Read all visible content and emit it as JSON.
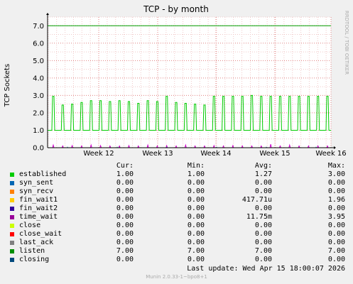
{
  "chart_data": {
    "type": "line",
    "title": "TCP - by month",
    "ylabel": "TCP Sockets",
    "side_label": "RRDTOOL / TOBI OETIKER",
    "ylim": [
      0,
      7.5
    ],
    "y_ticks": [
      "0.0",
      "1.0",
      "2.0",
      "3.0",
      "4.0",
      "5.0",
      "6.0",
      "7.0"
    ],
    "x_ticks": [
      "Week 12",
      "Week 13",
      "Week 14",
      "Week 15",
      "Week 16"
    ],
    "grid": true,
    "series": [
      {
        "name": "listen",
        "color": "#00a000",
        "values": [
          7,
          7
        ]
      },
      {
        "name": "established",
        "color": "#00cc00",
        "baseline": 1.0,
        "spikes": [
          2.95,
          2.45,
          2.5,
          2.6,
          2.7,
          2.7,
          2.65,
          2.7,
          2.65,
          2.55,
          2.7,
          2.65,
          2.95,
          2.6,
          2.55,
          2.5,
          2.45,
          2.95,
          2.95,
          2.95,
          2.95,
          3.0,
          2.95,
          2.95,
          2.95,
          2.95,
          2.95,
          2.95,
          2.95,
          2.95
        ]
      },
      {
        "name": "time_wait",
        "color": "#cc00cc",
        "spikes": [
          0.15,
          0.1,
          0.12,
          0.1,
          0.15,
          0.12,
          0.1,
          0.1,
          0.12,
          0.1,
          0.15,
          0.1,
          0.12,
          0.1,
          0.15,
          0.1,
          0.1,
          0.12,
          0.1,
          0.12,
          0.1,
          0.1,
          0.1,
          0.2,
          0.1,
          0.15,
          0.1,
          0.1,
          0.1,
          0.1
        ]
      },
      {
        "name": "fin_wait1",
        "color": "#0066b3",
        "spikes": [
          0.05,
          0.05,
          0.05,
          0.05,
          0.05,
          0.05
        ]
      }
    ]
  },
  "legend": {
    "headers": {
      "cur": "Cur:",
      "min": "Min:",
      "avg": "Avg:",
      "max": "Max:"
    },
    "rows": [
      {
        "name": "established",
        "color": "#00cc00",
        "cur": "1.00",
        "min": "1.00",
        "avg": "1.27",
        "max": "3.00"
      },
      {
        "name": "syn_sent",
        "color": "#0066b3",
        "cur": "0.00",
        "min": "0.00",
        "avg": "0.00",
        "max": "0.00"
      },
      {
        "name": "syn_recv",
        "color": "#ff8000",
        "cur": "0.00",
        "min": "0.00",
        "avg": "0.00",
        "max": "0.00"
      },
      {
        "name": "fin_wait1",
        "color": "#ffcc00",
        "cur": "0.00",
        "min": "0.00",
        "avg": "417.71u",
        "max": "1.96"
      },
      {
        "name": "fin_wait2",
        "color": "#330099",
        "cur": "0.00",
        "min": "0.00",
        "avg": "0.00",
        "max": "0.00"
      },
      {
        "name": "time_wait",
        "color": "#990099",
        "cur": "0.00",
        "min": "0.00",
        "avg": "11.75m",
        "max": "3.95"
      },
      {
        "name": "close",
        "color": "#ccff00",
        "cur": "0.00",
        "min": "0.00",
        "avg": "0.00",
        "max": "0.00"
      },
      {
        "name": "close_wait",
        "color": "#ff0000",
        "cur": "0.00",
        "min": "0.00",
        "avg": "0.00",
        "max": "0.00"
      },
      {
        "name": "last_ack",
        "color": "#808080",
        "cur": "0.00",
        "min": "0.00",
        "avg": "0.00",
        "max": "0.00"
      },
      {
        "name": "listen",
        "color": "#008f00",
        "cur": "7.00",
        "min": "7.00",
        "avg": "7.00",
        "max": "7.00"
      },
      {
        "name": "closing",
        "color": "#00487d",
        "cur": "0.00",
        "min": "0.00",
        "avg": "0.00",
        "max": "0.00"
      }
    ]
  },
  "footer": {
    "last_update": "Last update: Wed Apr 15 18:00:07 2026",
    "version": "Munin 2.0.33-1~bpo8+1"
  }
}
